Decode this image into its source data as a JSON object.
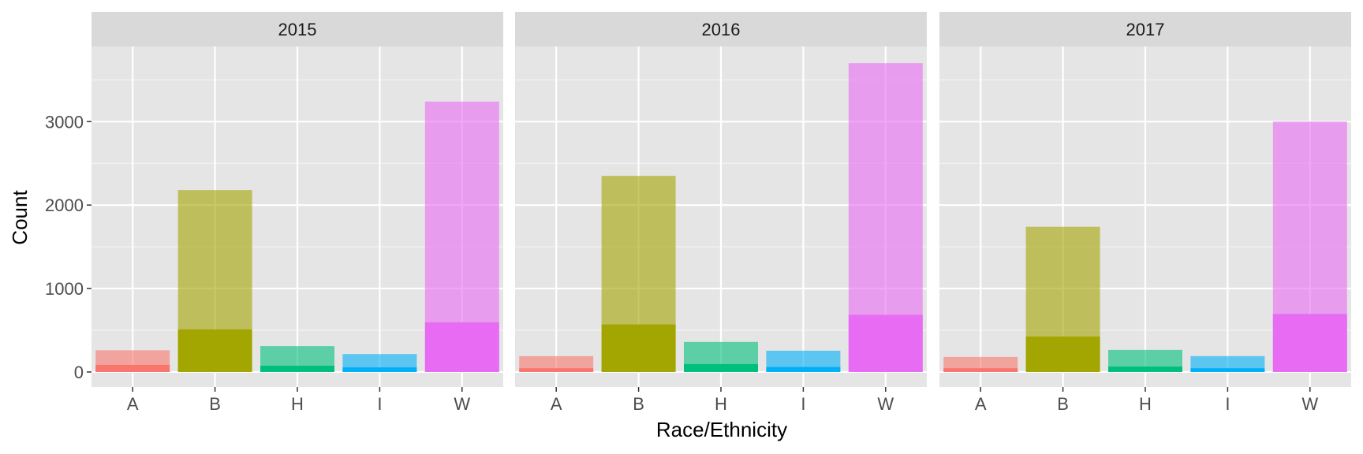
{
  "chart_data": {
    "type": "bar",
    "xlabel": "Race/Ethnicity",
    "ylabel": "Count",
    "ylim": [
      -180,
      3900
    ],
    "y_ticks": [
      0,
      1000,
      2000,
      3000
    ],
    "y_tick_labels": [
      "0",
      "1000",
      "2000",
      "3000"
    ],
    "categories": [
      "A",
      "B",
      "H",
      "I",
      "W"
    ],
    "colors": {
      "A": "#F8766D",
      "B": "#A3A500",
      "H": "#00BF7D",
      "I": "#00B0F6",
      "W": "#E76BF3"
    },
    "panel_background": "#E5E5E5",
    "strip_background": "#D9D9D9",
    "grid": true,
    "facets": [
      {
        "label": "2015",
        "total": [
          260,
          2180,
          310,
          215,
          3240
        ],
        "subset": [
          85,
          510,
          75,
          55,
          595
        ]
      },
      {
        "label": "2016",
        "total": [
          190,
          2350,
          360,
          255,
          3700
        ],
        "subset": [
          45,
          570,
          95,
          60,
          685
        ]
      },
      {
        "label": "2017",
        "total": [
          180,
          1740,
          265,
          190,
          3000
        ],
        "subset": [
          45,
          425,
          65,
          45,
          695
        ]
      }
    ]
  }
}
